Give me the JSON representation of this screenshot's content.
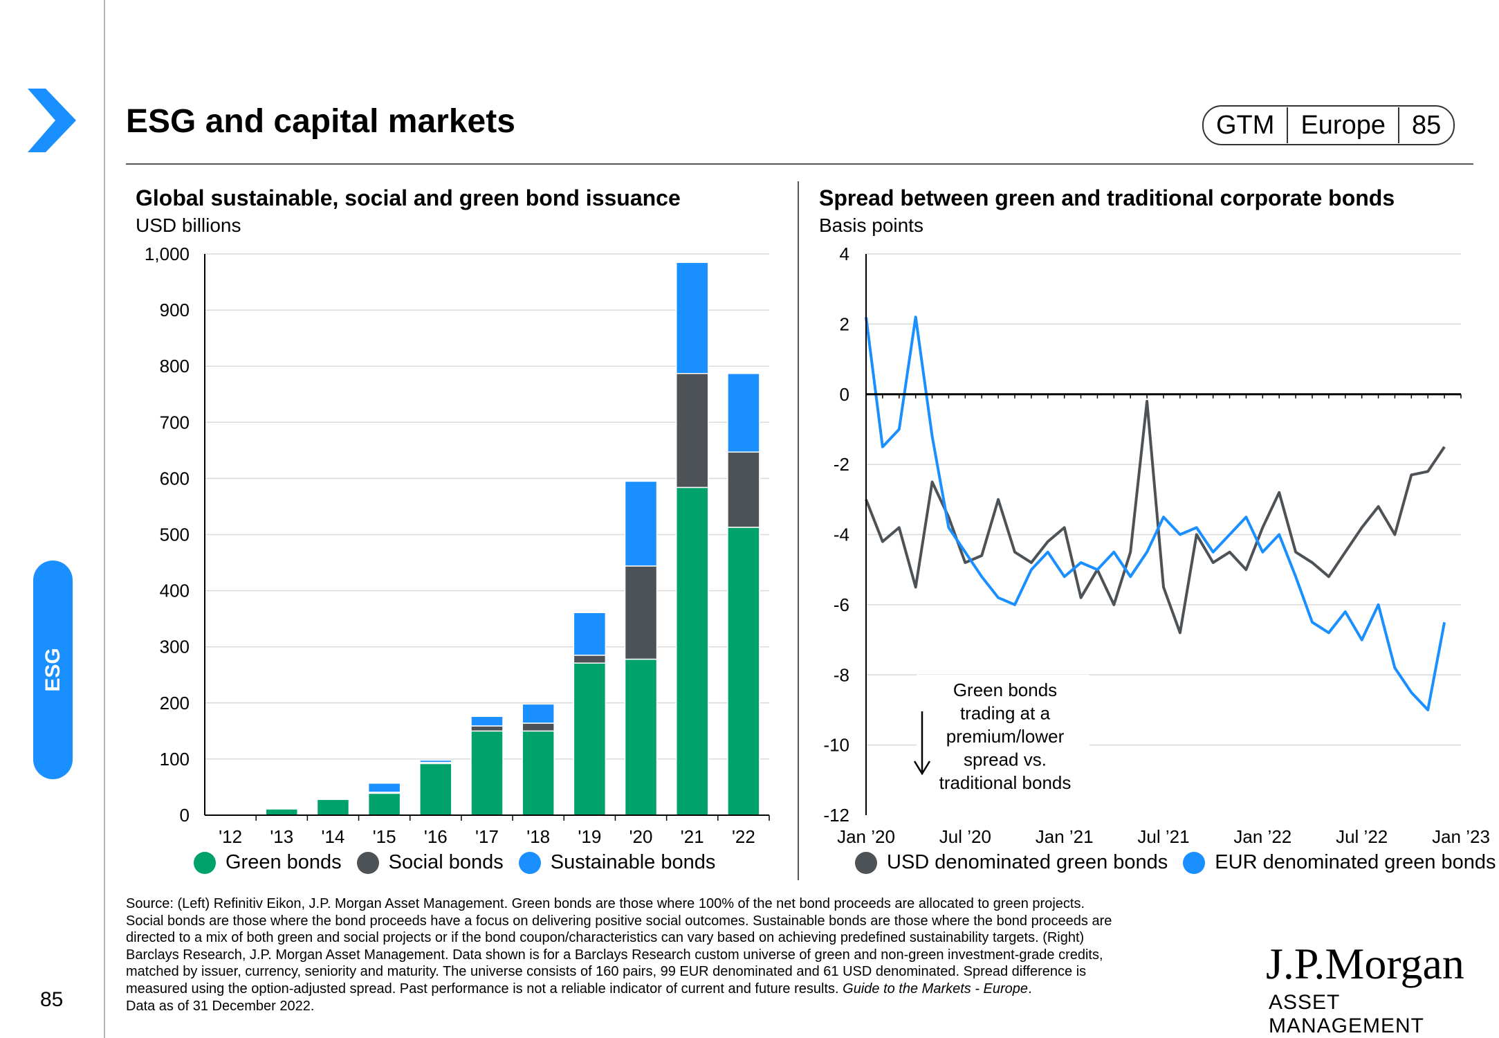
{
  "header": {
    "title": "ESG and capital markets",
    "pill": [
      "GTM",
      "Europe",
      "85"
    ]
  },
  "side": {
    "tab_label": "ESG",
    "page_number": "85"
  },
  "colors": {
    "green": "#00a26b",
    "social": "#4d5257",
    "sustainable": "#1a8fff",
    "usd_line": "#4d5257",
    "eur_line": "#1a8fff",
    "tab": "#1a8fff"
  },
  "left_chart": {
    "title": "Global sustainable, social and green bond issuance",
    "subtitle": "USD billions"
  },
  "right_chart": {
    "title": "Spread between green and traditional corporate bonds",
    "subtitle": "Basis points",
    "annotation": [
      "Green bonds",
      "trading at a",
      "premium/lower",
      "spread vs.",
      "traditional bonds"
    ]
  },
  "chart_data": [
    {
      "type": "bar",
      "stacked": true,
      "title": "Global sustainable, social and green bond issuance",
      "ylabel": "USD billions",
      "categories": [
        "'12",
        "'13",
        "'14",
        "'15",
        "'16",
        "'17",
        "'18",
        "'19",
        "'20",
        "'21",
        "'22"
      ],
      "ylim": [
        0,
        1000
      ],
      "yticks": [
        0,
        100,
        200,
        300,
        400,
        500,
        600,
        700,
        800,
        900,
        1000
      ],
      "ytick_labels": [
        "0",
        "100",
        "200",
        "300",
        "400",
        "500",
        "600",
        "700",
        "800",
        "900",
        "1,000"
      ],
      "grid": true,
      "legend_position": "bottom",
      "series": [
        {
          "name": "Green bonds",
          "values": [
            1,
            11,
            28,
            39,
            92,
            150,
            150,
            271,
            278,
            584,
            513
          ]
        },
        {
          "name": "Social bonds",
          "values": [
            0,
            0,
            0,
            2,
            2,
            9,
            14,
            14,
            166,
            203,
            134
          ]
        },
        {
          "name": "Sustainable bonds",
          "values": [
            0,
            0,
            0,
            16,
            4,
            17,
            34,
            76,
            151,
            198,
            140
          ]
        }
      ]
    },
    {
      "type": "line",
      "title": "Spread between green and traditional corporate bonds",
      "ylabel": "Basis points",
      "x_tick_labels": [
        "Jan ’20",
        "Jul ’20",
        "Jan ’21",
        "Jul ’21",
        "Jan ’22",
        "Jul ’22",
        "Jan ’23"
      ],
      "x_ticks": [
        "2020-01",
        "2020-07",
        "2021-01",
        "2021-07",
        "2022-01",
        "2022-07",
        "2023-01"
      ],
      "ylim": [
        -12,
        4
      ],
      "yticks": [
        4,
        2,
        0,
        -2,
        -4,
        -6,
        -8,
        -10,
        -12
      ],
      "ytick_labels": [
        "4",
        "2",
        "0",
        "-2",
        "-4",
        "-6",
        "-8",
        "-10",
        "-12"
      ],
      "grid": true,
      "legend_position": "bottom",
      "series": [
        {
          "name": "USD denominated green bonds",
          "x": [
            "2020-01",
            "2020-02",
            "2020-03",
            "2020-04",
            "2020-05",
            "2020-06",
            "2020-07",
            "2020-08",
            "2020-09",
            "2020-10",
            "2020-11",
            "2020-12",
            "2021-01",
            "2021-02",
            "2021-03",
            "2021-04",
            "2021-05",
            "2021-06",
            "2021-07",
            "2021-08",
            "2021-09",
            "2021-10",
            "2021-11",
            "2021-12",
            "2022-01",
            "2022-02",
            "2022-03",
            "2022-04",
            "2022-05",
            "2022-06",
            "2022-07",
            "2022-08",
            "2022-09",
            "2022-10",
            "2022-11",
            "2022-12"
          ],
          "values": [
            -3.0,
            -4.2,
            -3.8,
            -5.5,
            -2.5,
            -3.5,
            -4.8,
            -4.6,
            -3.0,
            -4.5,
            -4.8,
            -4.2,
            -3.8,
            -5.8,
            -5.0,
            -6.0,
            -4.5,
            -0.2,
            -5.5,
            -6.8,
            -4.0,
            -4.8,
            -4.5,
            -5.0,
            -3.8,
            -2.8,
            -4.5,
            -4.8,
            -5.2,
            -4.5,
            -3.8,
            -3.2,
            -4.0,
            -2.3,
            -2.2,
            -1.5
          ]
        },
        {
          "name": "EUR denominated green bonds",
          "x": [
            "2020-01",
            "2020-02",
            "2020-03",
            "2020-04",
            "2020-05",
            "2020-06",
            "2020-07",
            "2020-08",
            "2020-09",
            "2020-10",
            "2020-11",
            "2020-12",
            "2021-01",
            "2021-02",
            "2021-03",
            "2021-04",
            "2021-05",
            "2021-06",
            "2021-07",
            "2021-08",
            "2021-09",
            "2021-10",
            "2021-11",
            "2021-12",
            "2022-01",
            "2022-02",
            "2022-03",
            "2022-04",
            "2022-05",
            "2022-06",
            "2022-07",
            "2022-08",
            "2022-09",
            "2022-10",
            "2022-11",
            "2022-12"
          ],
          "values": [
            2.2,
            -1.5,
            -1.0,
            2.2,
            -1.2,
            -3.8,
            -4.5,
            -5.2,
            -5.8,
            -6.0,
            -5.0,
            -4.5,
            -5.2,
            -4.8,
            -5.0,
            -4.5,
            -5.2,
            -4.5,
            -3.5,
            -4.0,
            -3.8,
            -4.5,
            -4.0,
            -3.5,
            -4.5,
            -4.0,
            -5.2,
            -6.5,
            -6.8,
            -6.2,
            -7.0,
            -6.0,
            -7.8,
            -8.5,
            -9.0,
            -6.5
          ]
        }
      ]
    }
  ],
  "source": {
    "lines": [
      "Source: (Left) Refinitiv Eikon, J.P. Morgan Asset Management. Green bonds are those where 100% of the net bond proceeds are allocated to green projects.",
      "Social bonds are those where the bond proceeds have a focus on delivering positive social outcomes. Sustainable bonds are those where the bond proceeds are",
      "directed to a mix of both green and social projects or if the bond coupon/characteristics can vary based on achieving predefined sustainability targets. (Right)",
      "Barclays Research, J.P. Morgan Asset Management. Data shown is for a Barclays Research custom universe of green and non-green investment-grade credits,",
      "matched by issuer, currency, seniority and maturity. The universe consists of 160 pairs, 99 EUR denominated and 61 USD denominated. Spread difference is"
    ],
    "last_line_prefix": "measured using the option-adjusted spread. Past performance is not a reliable indicator of current and future results. ",
    "last_line_italic": "Guide to the Markets - Europe",
    "last_line_suffix": ".",
    "data_as_of": "Data as of 31 December 2022."
  },
  "logo": {
    "name": "J.P.Morgan",
    "subtitle": "ASSET MANAGEMENT"
  }
}
